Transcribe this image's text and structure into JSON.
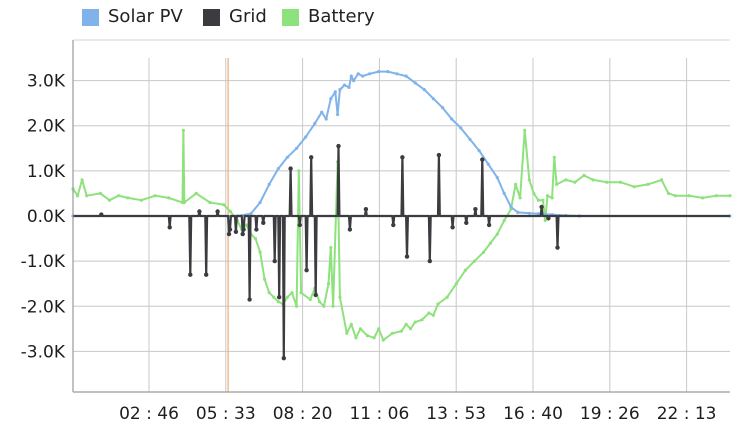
{
  "chart_data": {
    "type": "line",
    "title": "",
    "xlabel": "",
    "ylabel": "",
    "ylim": [
      -3900,
      3900
    ],
    "y_ticks": [
      3000,
      2000,
      1000,
      0,
      -1000,
      -2000,
      -3000
    ],
    "y_tick_labels": [
      "3.0K",
      "2.0K",
      "1.0K",
      "0.0K",
      "-1.0K",
      "-2.0K",
      "-3.0K"
    ],
    "x_range": [
      "00:00",
      "24:00"
    ],
    "x_tick_labels": [
      "02 : 46",
      "05 : 33",
      "08 : 20",
      "11 : 06",
      "13 : 53",
      "16 : 40",
      "19 : 26",
      "22 : 13"
    ],
    "grid": true,
    "legend_position": "top-left",
    "cursor_time": "05:40",
    "series": [
      {
        "name": "Solar PV",
        "color": "#7fb3ea",
        "points": [
          [
            "00:00",
            0
          ],
          [
            "06:00",
            0
          ],
          [
            "06:30",
            50
          ],
          [
            "06:50",
            300
          ],
          [
            "07:10",
            700
          ],
          [
            "07:30",
            1050
          ],
          [
            "07:50",
            1300
          ],
          [
            "08:10",
            1500
          ],
          [
            "08:30",
            1750
          ],
          [
            "08:50",
            2050
          ],
          [
            "09:05",
            2300
          ],
          [
            "09:15",
            2150
          ],
          [
            "09:25",
            2600
          ],
          [
            "09:35",
            2750
          ],
          [
            "09:40",
            2250
          ],
          [
            "09:45",
            2800
          ],
          [
            "09:55",
            2900
          ],
          [
            "10:05",
            2850
          ],
          [
            "10:10",
            3100
          ],
          [
            "10:15",
            3000
          ],
          [
            "10:25",
            3150
          ],
          [
            "10:35",
            3100
          ],
          [
            "10:50",
            3150
          ],
          [
            "11:10",
            3200
          ],
          [
            "11:30",
            3200
          ],
          [
            "11:50",
            3150
          ],
          [
            "12:10",
            3100
          ],
          [
            "12:30",
            2950
          ],
          [
            "12:50",
            2800
          ],
          [
            "13:10",
            2600
          ],
          [
            "13:30",
            2400
          ],
          [
            "13:50",
            2150
          ],
          [
            "14:10",
            1950
          ],
          [
            "14:30",
            1700
          ],
          [
            "14:50",
            1450
          ],
          [
            "15:10",
            1150
          ],
          [
            "15:30",
            850
          ],
          [
            "15:45",
            500
          ],
          [
            "16:00",
            200
          ],
          [
            "16:15",
            80
          ],
          [
            "16:40",
            60
          ],
          [
            "17:00",
            50
          ],
          [
            "17:30",
            30
          ],
          [
            "18:00",
            10
          ],
          [
            "18:30",
            0
          ],
          [
            "24:00",
            0
          ]
        ]
      },
      {
        "name": "Grid",
        "color": "#3c3c40",
        "points": [
          [
            "00:00",
            0
          ],
          [
            "01:00",
            0
          ],
          [
            "01:02",
            30
          ],
          [
            "01:04",
            0
          ],
          [
            "03:30",
            0
          ],
          [
            "03:32",
            -250
          ],
          [
            "03:34",
            0
          ],
          [
            "04:15",
            0
          ],
          [
            "04:17",
            -1300
          ],
          [
            "04:19",
            0
          ],
          [
            "04:35",
            0
          ],
          [
            "04:37",
            100
          ],
          [
            "04:39",
            0
          ],
          [
            "04:50",
            0
          ],
          [
            "04:52",
            -1300
          ],
          [
            "04:54",
            0
          ],
          [
            "05:15",
            0
          ],
          [
            "05:17",
            100
          ],
          [
            "05:19",
            0
          ],
          [
            "05:40",
            0
          ],
          [
            "05:42",
            -400
          ],
          [
            "05:44",
            -300
          ],
          [
            "05:46",
            0
          ],
          [
            "05:55",
            0
          ],
          [
            "05:57",
            -350
          ],
          [
            "05:59",
            0
          ],
          [
            "06:10",
            0
          ],
          [
            "06:12",
            -400
          ],
          [
            "06:14",
            -300
          ],
          [
            "06:16",
            0
          ],
          [
            "06:25",
            0
          ],
          [
            "06:27",
            -1850
          ],
          [
            "06:29",
            0
          ],
          [
            "06:40",
            0
          ],
          [
            "06:42",
            -300
          ],
          [
            "06:44",
            0
          ],
          [
            "06:55",
            0
          ],
          [
            "06:57",
            -150
          ],
          [
            "06:59",
            0
          ],
          [
            "07:20",
            0
          ],
          [
            "07:22",
            -1000
          ],
          [
            "07:24",
            0
          ],
          [
            "07:30",
            0
          ],
          [
            "07:32",
            -1800
          ],
          [
            "07:34",
            0
          ],
          [
            "07:40",
            0
          ],
          [
            "07:42",
            -3150
          ],
          [
            "07:44",
            0
          ],
          [
            "07:55",
            0
          ],
          [
            "07:57",
            1050
          ],
          [
            "07:59",
            0
          ],
          [
            "08:15",
            0
          ],
          [
            "08:17",
            -200
          ],
          [
            "08:19",
            0
          ],
          [
            "08:30",
            0
          ],
          [
            "08:32",
            -1200
          ],
          [
            "08:34",
            0
          ],
          [
            "08:40",
            0
          ],
          [
            "08:42",
            1300
          ],
          [
            "08:44",
            0
          ],
          [
            "08:50",
            0
          ],
          [
            "08:52",
            -1750
          ],
          [
            "08:54",
            0
          ],
          [
            "09:40",
            0
          ],
          [
            "09:42",
            1550
          ],
          [
            "09:44",
            0
          ],
          [
            "10:05",
            0
          ],
          [
            "10:07",
            -300
          ],
          [
            "10:09",
            0
          ],
          [
            "10:40",
            0
          ],
          [
            "10:42",
            150
          ],
          [
            "10:44",
            0
          ],
          [
            "11:40",
            0
          ],
          [
            "11:42",
            -200
          ],
          [
            "11:44",
            0
          ],
          [
            "12:00",
            0
          ],
          [
            "12:02",
            1300
          ],
          [
            "12:04",
            0
          ],
          [
            "12:10",
            0
          ],
          [
            "12:12",
            -900
          ],
          [
            "12:14",
            0
          ],
          [
            "13:00",
            0
          ],
          [
            "13:02",
            -1000
          ],
          [
            "13:04",
            0
          ],
          [
            "13:20",
            0
          ],
          [
            "13:22",
            1350
          ],
          [
            "13:24",
            0
          ],
          [
            "13:50",
            0
          ],
          [
            "13:52",
            -250
          ],
          [
            "13:54",
            0
          ],
          [
            "14:20",
            0
          ],
          [
            "14:22",
            -150
          ],
          [
            "14:24",
            0
          ],
          [
            "14:40",
            0
          ],
          [
            "14:42",
            150
          ],
          [
            "14:44",
            0
          ],
          [
            "14:55",
            0
          ],
          [
            "14:57",
            1250
          ],
          [
            "14:59",
            0
          ],
          [
            "15:10",
            0
          ],
          [
            "15:12",
            -200
          ],
          [
            "15:14",
            0
          ],
          [
            "17:05",
            0
          ],
          [
            "17:07",
            200
          ],
          [
            "17:09",
            0
          ],
          [
            "17:20",
            0
          ],
          [
            "17:22",
            -50
          ],
          [
            "17:24",
            0
          ],
          [
            "17:40",
            0
          ],
          [
            "17:42",
            -700
          ],
          [
            "17:44",
            0
          ],
          [
            "24:00",
            0
          ]
        ]
      },
      {
        "name": "Battery",
        "color": "#8ee27d",
        "points": [
          [
            "00:00",
            600
          ],
          [
            "00:10",
            450
          ],
          [
            "00:20",
            800
          ],
          [
            "00:30",
            450
          ],
          [
            "01:00",
            500
          ],
          [
            "01:20",
            350
          ],
          [
            "01:40",
            450
          ],
          [
            "02:00",
            400
          ],
          [
            "02:30",
            350
          ],
          [
            "03:00",
            450
          ],
          [
            "03:30",
            400
          ],
          [
            "04:00",
            300
          ],
          [
            "04:02",
            1900
          ],
          [
            "04:04",
            300
          ],
          [
            "04:30",
            500
          ],
          [
            "05:00",
            300
          ],
          [
            "05:30",
            250
          ],
          [
            "05:45",
            100
          ],
          [
            "06:00",
            -100
          ],
          [
            "06:10",
            -300
          ],
          [
            "06:20",
            -200
          ],
          [
            "06:30",
            -400
          ],
          [
            "06:40",
            -500
          ],
          [
            "06:50",
            -800
          ],
          [
            "07:00",
            -1400
          ],
          [
            "07:10",
            -1700
          ],
          [
            "07:20",
            -1800
          ],
          [
            "07:30",
            -1900
          ],
          [
            "07:40",
            -1950
          ],
          [
            "07:50",
            -1800
          ],
          [
            "08:00",
            -1700
          ],
          [
            "08:10",
            -2000
          ],
          [
            "08:15",
            1000
          ],
          [
            "08:20",
            -1700
          ],
          [
            "08:40",
            -1850
          ],
          [
            "08:50",
            -1600
          ],
          [
            "09:00",
            -1900
          ],
          [
            "09:10",
            -2000
          ],
          [
            "09:20",
            -1500
          ],
          [
            "09:25",
            -700
          ],
          [
            "09:30",
            -2000
          ],
          [
            "09:40",
            1200
          ],
          [
            "09:45",
            -1800
          ],
          [
            "10:00",
            -2600
          ],
          [
            "10:10",
            -2400
          ],
          [
            "10:20",
            -2700
          ],
          [
            "10:30",
            -2500
          ],
          [
            "10:45",
            -2650
          ],
          [
            "11:00",
            -2700
          ],
          [
            "11:10",
            -2500
          ],
          [
            "11:20",
            -2750
          ],
          [
            "11:40",
            -2600
          ],
          [
            "12:00",
            -2550
          ],
          [
            "12:10",
            -2400
          ],
          [
            "12:20",
            -2500
          ],
          [
            "12:30",
            -2350
          ],
          [
            "12:45",
            -2300
          ],
          [
            "13:00",
            -2150
          ],
          [
            "13:10",
            -2200
          ],
          [
            "13:20",
            -1950
          ],
          [
            "13:40",
            -1800
          ],
          [
            "14:00",
            -1500
          ],
          [
            "14:20",
            -1200
          ],
          [
            "14:40",
            -1000
          ],
          [
            "15:00",
            -800
          ],
          [
            "15:15",
            -600
          ],
          [
            "15:30",
            -400
          ],
          [
            "15:45",
            -100
          ],
          [
            "16:00",
            150
          ],
          [
            "16:10",
            700
          ],
          [
            "16:20",
            400
          ],
          [
            "16:30",
            1900
          ],
          [
            "16:40",
            800
          ],
          [
            "16:50",
            500
          ],
          [
            "17:00",
            350
          ],
          [
            "17:10",
            350
          ],
          [
            "17:15",
            -100
          ],
          [
            "17:20",
            450
          ],
          [
            "17:30",
            400
          ],
          [
            "17:35",
            1300
          ],
          [
            "17:40",
            700
          ],
          [
            "18:00",
            800
          ],
          [
            "18:20",
            750
          ],
          [
            "18:40",
            900
          ],
          [
            "19:00",
            800
          ],
          [
            "19:30",
            750
          ],
          [
            "20:00",
            750
          ],
          [
            "20:30",
            650
          ],
          [
            "21:00",
            700
          ],
          [
            "21:30",
            800
          ],
          [
            "21:45",
            500
          ],
          [
            "22:00",
            450
          ],
          [
            "22:30",
            450
          ],
          [
            "23:00",
            400
          ],
          [
            "23:30",
            450
          ],
          [
            "24:00",
            450
          ]
        ]
      }
    ]
  }
}
